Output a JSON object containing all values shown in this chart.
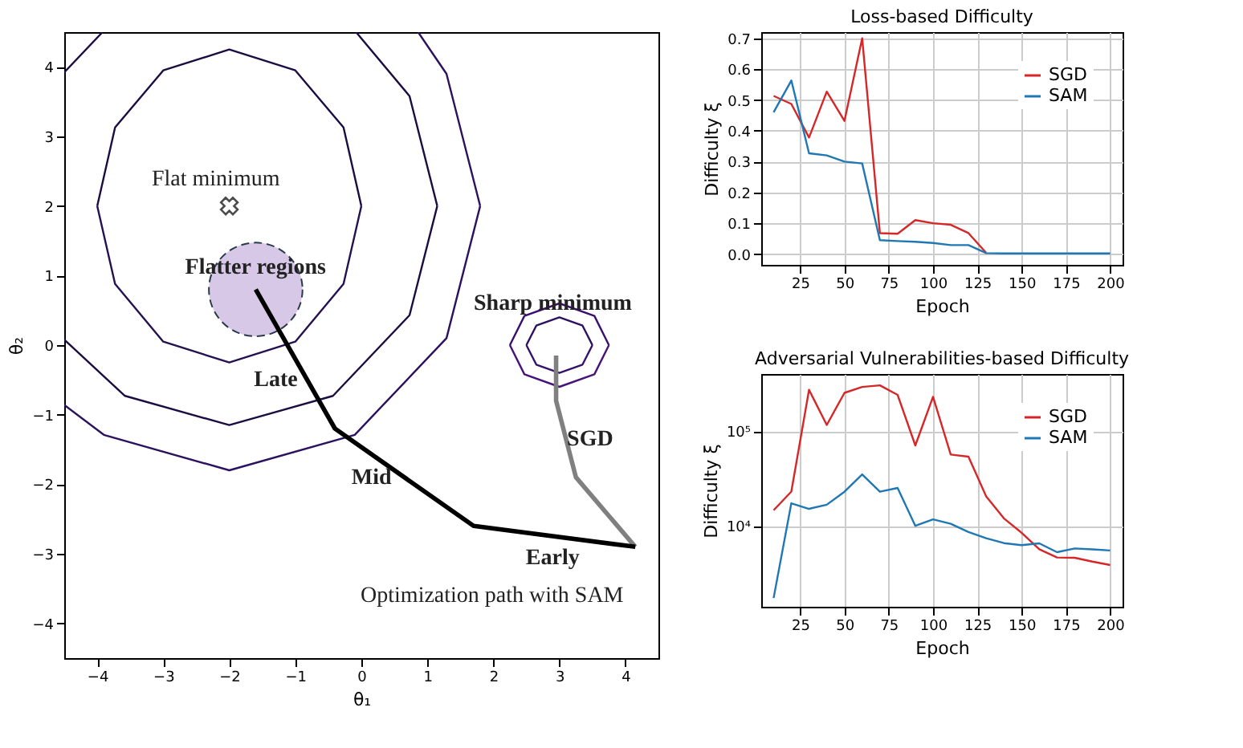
{
  "chart_data": [
    {
      "type": "line",
      "xlabel": "θ₁",
      "ylabel": "θ₂",
      "xlim": [
        -4.5,
        4.5
      ],
      "ylim": [
        -4.5,
        4.5
      ],
      "xticks": [
        -4,
        -3,
        -2,
        -1,
        0,
        1,
        2,
        3,
        4
      ],
      "yticks": [
        -4,
        -3,
        -2,
        -1,
        0,
        1,
        2,
        3,
        4
      ],
      "grid": false,
      "legend": false,
      "series": [
        {
          "color": "#1b0c41",
          "x": [
            -4,
            -3.73,
            -3,
            -2,
            -1,
            -0.27,
            0
          ],
          "values": [
            2,
            3.13,
            3.95,
            4.25,
            3.95,
            3.13,
            2
          ]
        },
        {
          "color": "#251050",
          "x": [
            -4,
            -3.73,
            -3,
            -2,
            -1,
            -0.27,
            0
          ],
          "values": [
            2,
            0.88,
            0.05,
            -0.25,
            0.05,
            0.88,
            2
          ]
        },
        {
          "color": "#1b0c41",
          "x": [
            -4.5,
            -3.92
          ],
          "values": [
            3.92,
            4.5
          ]
        },
        {
          "color": "#1b0c41",
          "x": [
            -0.08,
            0.73,
            1.15
          ],
          "values": [
            4.5,
            3.58,
            2
          ]
        },
        {
          "color": "#1b0c41",
          "x": [
            -4.5,
            -3.58,
            -2,
            -0.43,
            0.73,
            1.15
          ],
          "values": [
            0.08,
            -0.73,
            -1.15,
            -0.73,
            0.43,
            2
          ]
        },
        {
          "color": "#2c115f",
          "x": [
            0.86,
            1.29,
            1.8
          ],
          "values": [
            4.5,
            3.9,
            2
          ]
        },
        {
          "color": "#2c115f",
          "x": [
            -4.5,
            -3.9,
            -2,
            -0.1,
            1.29,
            1.8
          ],
          "values": [
            -0.86,
            -1.29,
            -1.8,
            -1.29,
            0.1,
            2
          ]
        },
        {
          "color": "#2c115f",
          "x": [
            2.5,
            2.65,
            3,
            3.35,
            3.5
          ],
          "values": [
            0,
            0.28,
            0.4,
            0.28,
            0
          ]
        },
        {
          "color": "#35126a",
          "x": [
            2.5,
            2.65,
            3,
            3.35,
            3.5
          ],
          "values": [
            0,
            -0.28,
            -0.4,
            -0.28,
            0
          ]
        },
        {
          "color": "#3b0f70",
          "x": [
            2.25,
            2.47,
            3,
            3.53,
            3.75
          ],
          "values": [
            0,
            0.42,
            0.6,
            0.42,
            0
          ]
        },
        {
          "color": "#46137a",
          "x": [
            2.25,
            2.47,
            3,
            3.53,
            3.75
          ],
          "values": [
            0,
            -0.42,
            -0.6,
            -0.42,
            0
          ]
        },
        {
          "type": "bubble",
          "color": "#d8c8e8",
          "line_style": "dashed",
          "x": [
            -1.6
          ],
          "values": [
            0.8
          ],
          "sizes": [
            1
          ]
        },
        {
          "type": "scatter",
          "marker": "cross",
          "color": "#000000",
          "x": [
            -2
          ],
          "values": [
            2
          ]
        },
        {
          "color": "#808080",
          "x": [
            4.15,
            3.25,
            2.95,
            2.95
          ],
          "values": [
            -2.9,
            -1.9,
            -0.8,
            -0.15
          ]
        },
        {
          "color": "#000000",
          "x": [
            4.15,
            1.7,
            -0.4,
            -1.6
          ],
          "values": [
            -2.9,
            -2.6,
            -1.2,
            0.8
          ]
        }
      ],
      "annotations": [
        "Flat minimum",
        "Flatter regions",
        {
          "text": "Sharp minimum",
          "x": 2.9,
          "y": 0.6
        },
        "Late",
        "Mid",
        "SGD",
        "Early",
        "Optimization path with SAM"
      ]
    },
    {
      "type": "line",
      "title": "Loss-based Difficulty",
      "xlabel": "Epoch",
      "ylabel": "Difficulty ξ",
      "xlim": [
        3,
        207
      ],
      "ylim": [
        -0.035,
        0.72
      ],
      "xticks": [
        25,
        50,
        75,
        100,
        125,
        150,
        175,
        200
      ],
      "yticks": [
        {
          "value": 0,
          "label": "0.0"
        },
        0.1,
        0.2,
        0.3,
        0.4,
        0.5,
        0.6,
        0.7
      ],
      "grid": true,
      "legend": "top right",
      "x": [
        10,
        20,
        30,
        40,
        50,
        60,
        70,
        80,
        90,
        100,
        110,
        120,
        130,
        140,
        150,
        160,
        170,
        180,
        190,
        200
      ],
      "series": [
        {
          "name": "SGD",
          "color": "#d62728",
          "values": [
            0.513,
            0.487,
            0.378,
            0.527,
            0.432,
            0.7,
            0.068,
            0.066,
            0.11,
            0.1,
            0.095,
            0.068,
            0.004,
            null,
            null,
            null,
            null,
            null,
            null,
            null
          ]
        },
        {
          "name": "SAM",
          "color": "#1f77b4",
          "values": [
            0.46,
            0.563,
            0.327,
            0.32,
            0.3,
            0.294,
            0.045,
            0.042,
            0.04,
            0.036,
            0.029,
            0.029,
            0.003,
            0.002,
            0.002,
            0.002,
            0.002,
            0.002,
            0.002,
            0.002
          ]
        }
      ]
    },
    {
      "type": "line",
      "title": "Adversarial Vulnerabilities-based Difficulty",
      "xlabel": "Epoch",
      "ylabel": "Difficulty ξ",
      "log": true,
      "xlim": [
        3,
        207
      ],
      "ylim": [
        1400,
        400000
      ],
      "xticks": [
        25,
        50,
        75,
        100,
        125,
        150,
        175,
        200
      ],
      "yticks": [
        {
          "value": 10000,
          "label": "10⁴"
        },
        {
          "value": 100000,
          "label": "10⁵"
        }
      ],
      "grid": true,
      "legend": "top right",
      "x": [
        10,
        20,
        30,
        40,
        50,
        60,
        70,
        80,
        90,
        100,
        110,
        120,
        130,
        140,
        150,
        160,
        170,
        180,
        190,
        200
      ],
      "series": [
        {
          "name": "SGD",
          "color": "#d62728",
          "values": [
            14600,
            23000,
            272000,
            116000,
            253000,
            292000,
            304000,
            241000,
            70500,
            230000,
            56500,
            53700,
            20400,
            12000,
            8450,
            5650,
            4630,
            4600,
            4190,
            3860
          ]
        },
        {
          "name": "SAM",
          "color": "#1f77b4",
          "values": [
            1730,
            17300,
            15100,
            16700,
            22900,
            34900,
            22900,
            25100,
            10000,
            11700,
            10500,
            8600,
            7400,
            6570,
            6250,
            6530,
            5270,
            5770,
            5650,
            5490
          ]
        }
      ]
    }
  ]
}
